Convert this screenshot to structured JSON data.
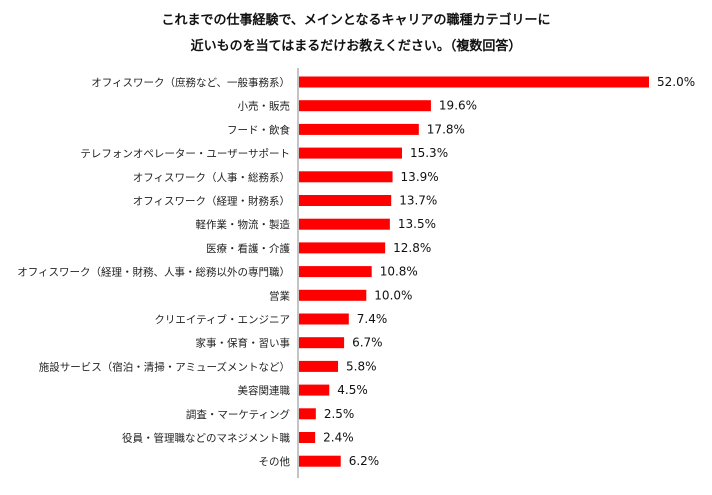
{
  "chart_data": {
    "type": "bar",
    "orientation": "horizontal",
    "title_line1": "これまでの仕事経験で、メインとなるキャリアの職種カテゴリーに",
    "title_line2": "近いものを当てはまるだけお教えください。（複数回答）",
    "categories": [
      "オフィスワーク（庶務など、一般事務系）",
      "小売・販売",
      "フード・飲食",
      "テレフォンオペレーター・ユーザーサポート",
      "オフィスワーク（人事・総務系）",
      "オフィスワーク（経理・財務系）",
      "軽作業・物流・製造",
      "医療・看護・介護",
      "オフィスワーク（経理・財務、人事・総務以外の専門職）",
      "営業",
      "クリエイティブ・エンジニア",
      "家事・保育・習い事",
      "施設サービス（宿泊・清掃・アミューズメントなど）",
      "美容関連職",
      "調査・マーケティング",
      "役員・管理職などのマネジメント職",
      "その他"
    ],
    "values": [
      52.0,
      19.6,
      17.8,
      15.3,
      13.9,
      13.7,
      13.5,
      12.8,
      10.8,
      10.0,
      7.4,
      6.7,
      5.8,
      4.5,
      2.5,
      2.4,
      6.2
    ],
    "value_labels": [
      "52.0%",
      "19.6%",
      "17.8%",
      "15.3%",
      "13.9%",
      "13.7%",
      "13.5%",
      "12.8%",
      "10.8%",
      "10.0%",
      "7.4%",
      "6.7%",
      "5.8%",
      "4.5%",
      "2.5%",
      "2.4%",
      "6.2%"
    ],
    "unit": "%",
    "bar_color": "#ff0000",
    "xlim": [
      0,
      55
    ],
    "grid": false,
    "legend": "none"
  }
}
